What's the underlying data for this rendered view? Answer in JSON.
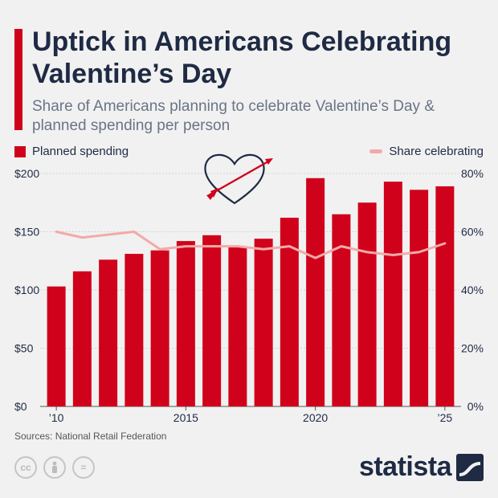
{
  "header": {
    "title": "Uptick in Americans Celebrating Valentine’s Day",
    "subtitle": "Share of Americans planning to celebrate Valentine’s Day & planned spending per person"
  },
  "legend": {
    "bars_label": "Planned spending",
    "line_label": "Share celebrating"
  },
  "footer": {
    "source": "Sources: National Retail Federation",
    "brand": "statista"
  },
  "icons": [
    "cc-icon",
    "person-icon",
    "equals-icon",
    "statista-logo-icon",
    "heart-arrow-icon"
  ],
  "colors": {
    "bar": "#d0021b",
    "line": "#f2aaa8",
    "text": "#1f2a44"
  },
  "chart_data": {
    "type": "bar",
    "years": [
      2010,
      2011,
      2012,
      2013,
      2014,
      2015,
      2016,
      2017,
      2018,
      2019,
      2020,
      2021,
      2022,
      2023,
      2024,
      2025
    ],
    "x_tick_labels": [
      {
        "year": 2010,
        "label": "’10"
      },
      {
        "year": 2015,
        "label": "2015"
      },
      {
        "year": 2020,
        "label": "2020"
      },
      {
        "year": 2025,
        "label": "’25"
      }
    ],
    "series": [
      {
        "name": "Planned spending",
        "axis": "left",
        "type": "bar",
        "values": [
          103,
          116,
          126,
          131,
          134,
          142,
          147,
          137,
          144,
          162,
          196,
          165,
          175,
          193,
          186,
          189
        ]
      },
      {
        "name": "Share celebrating",
        "axis": "right",
        "type": "line",
        "values": [
          60,
          58,
          59,
          60,
          54,
          55,
          55,
          55,
          54,
          55,
          51,
          55,
          53,
          52,
          53,
          56
        ]
      }
    ],
    "left_axis": {
      "ylim": [
        0,
        200
      ],
      "ticks": [
        0,
        50,
        100,
        150,
        200
      ],
      "tick_labels": [
        "$0",
        "$50",
        "$100",
        "$150",
        "$200"
      ]
    },
    "right_axis": {
      "ylim": [
        0,
        80
      ],
      "ticks": [
        0,
        20,
        40,
        60,
        80
      ],
      "tick_labels": [
        "0%",
        "20%",
        "40%",
        "60%",
        "80%"
      ]
    },
    "grid": true
  }
}
